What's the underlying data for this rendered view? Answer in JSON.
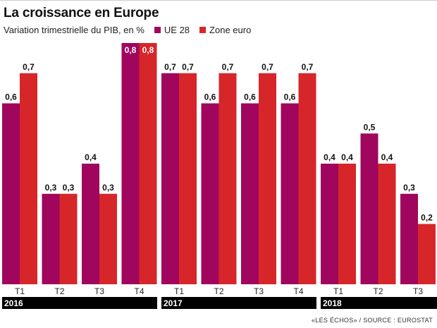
{
  "title": "La croissance en Europe",
  "subtitle": "Variation trimestrielle du PIB, en %",
  "source": "«LES ÉCHOS» / SOURCE : EUROSTAT",
  "colors": {
    "ue28": "#a0065e",
    "zone_euro": "#d7262a",
    "year_bar": "#000000"
  },
  "chart_data": {
    "type": "bar",
    "title": "La croissance en Europe",
    "subtitle": "Variation trimestrielle du PIB, en %",
    "categories": [
      "T1",
      "T2",
      "T3",
      "T4",
      "T1",
      "T2",
      "T3",
      "T4",
      "T1",
      "T2",
      "T3"
    ],
    "years": [
      {
        "label": "2016",
        "count": 4
      },
      {
        "label": "2017",
        "count": 4
      },
      {
        "label": "2018",
        "count": 3
      }
    ],
    "series": [
      {
        "name": "UE 28",
        "values": [
          0.6,
          0.3,
          0.4,
          0.8,
          0.7,
          0.6,
          0.6,
          0.6,
          0.4,
          0.5,
          0.3
        ]
      },
      {
        "name": "Zone euro",
        "values": [
          0.7,
          0.3,
          0.3,
          0.8,
          0.7,
          0.7,
          0.7,
          0.7,
          0.4,
          0.4,
          0.2
        ]
      }
    ],
    "value_labels": {
      "UE 28": [
        "0,6",
        "0,3",
        "0,4",
        "0,8",
        "0,7",
        "0,6",
        "0,6",
        "0,6",
        "0,4",
        "0,5",
        "0,3"
      ],
      "Zone euro": [
        "0,7",
        "0,3",
        "0,3",
        "0,8",
        "0,7",
        "0,7",
        "0,7",
        "0,7",
        "0,4",
        "0,4",
        "0,2"
      ]
    },
    "ylim": [
      0,
      0.8
    ],
    "legend": "top-left",
    "grid": false
  }
}
